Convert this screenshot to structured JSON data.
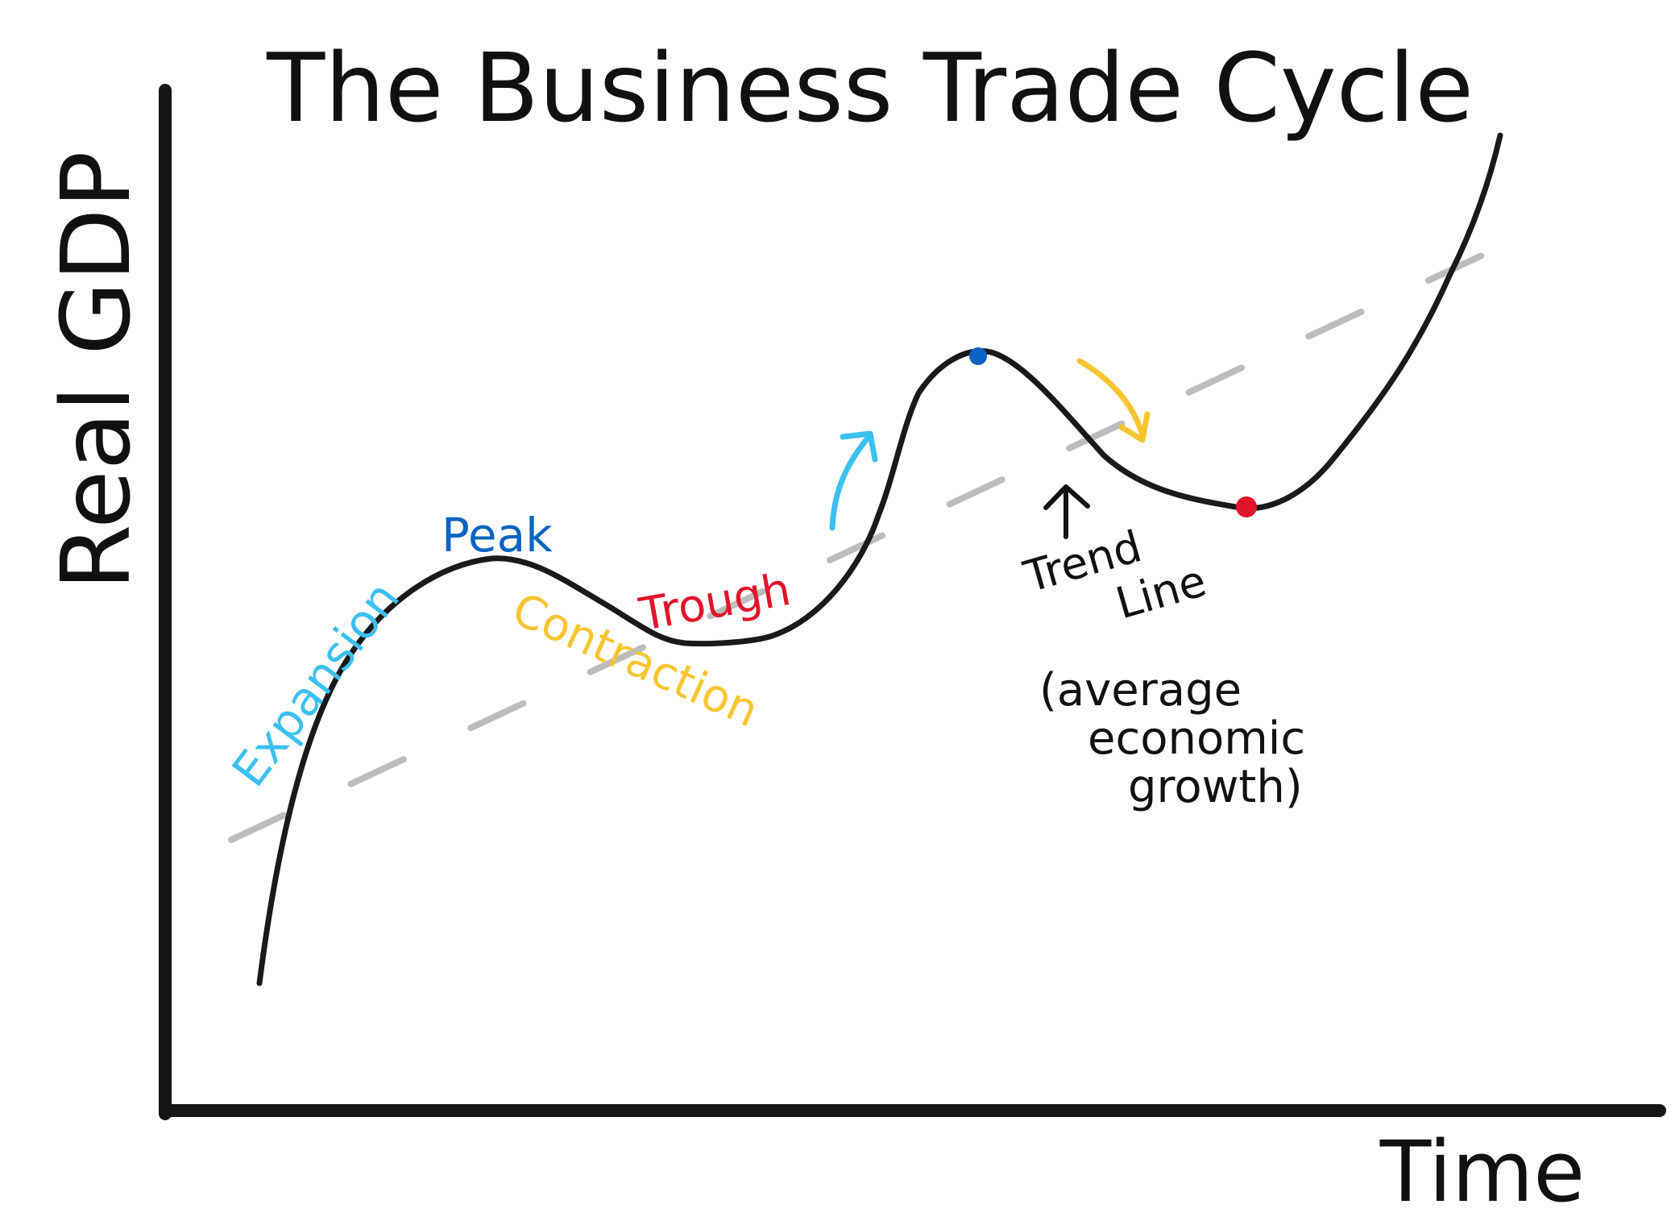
{
  "title": "The Business Trade Cycle",
  "axes": {
    "y_label": "Real GDP",
    "x_label": "Time"
  },
  "labels": {
    "expansion": "Expansion",
    "peak": "Peak",
    "contraction": "Contraction",
    "trough": "Trough",
    "trend_line": [
      "Trend",
      "Line"
    ],
    "trend_note": [
      "(average",
      "economic",
      "growth)"
    ]
  },
  "colors": {
    "curve": "#1a1a1a",
    "trend_line": "#bdbdbd",
    "expansion": "#3cc0f0",
    "peak": "#0a63c0",
    "contraction": "#f7c531",
    "trough": "#e0142a",
    "peak_dot": "#0a63c0",
    "trough_dot": "#e0142a",
    "annotation": "#111111"
  },
  "icons": {
    "expansion_arrow": "up-right-arrow-icon",
    "contraction_arrow": "down-right-arrow-icon",
    "trend_pointer": "up-arrow-icon"
  }
}
